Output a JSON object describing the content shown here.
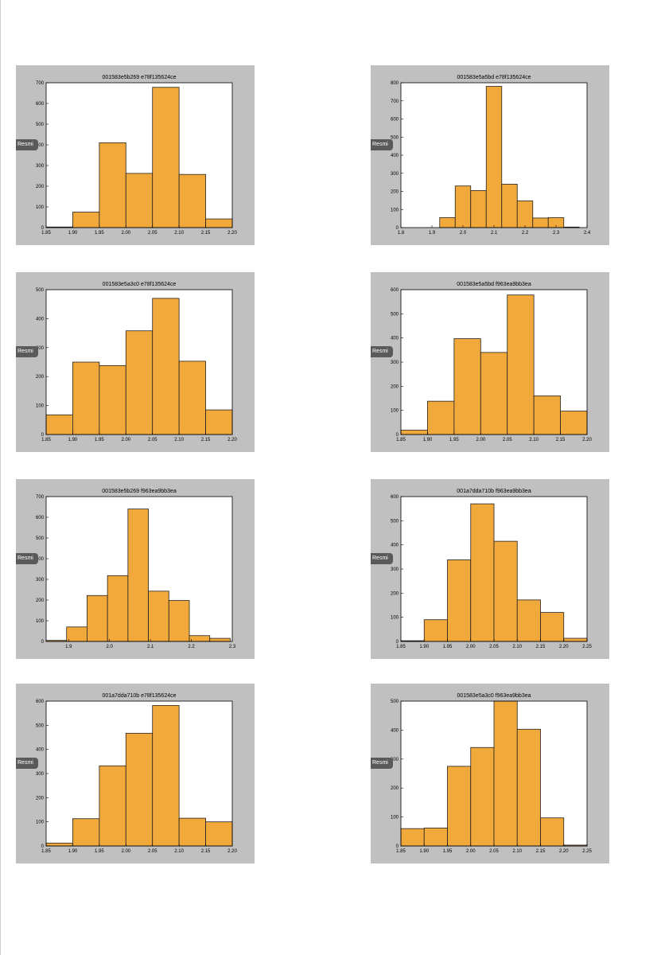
{
  "badge_label": "Resmi",
  "colors": {
    "bar_fill": "#f2a93b",
    "bar_stroke": "#222222",
    "panel_bg": "#c0c0c0",
    "plot_bg": "#ffffff"
  },
  "chart_data": [
    {
      "type": "bar",
      "title": "001583e5b269 e78f135624ce",
      "x_ticks": [
        "1.85",
        "1.90",
        "1.95",
        "2.00",
        "2.05",
        "2.10",
        "2.15",
        "2.20"
      ],
      "y_ticks": [
        "0",
        "100",
        "200",
        "300",
        "400",
        "500",
        "600",
        "700"
      ],
      "xlim": [
        1.85,
        2.2
      ],
      "ylim": [
        0,
        700
      ],
      "bins": [
        [
          1.85,
          1.9,
          3
        ],
        [
          1.9,
          1.95,
          75
        ],
        [
          1.95,
          2.0,
          410
        ],
        [
          2.0,
          2.05,
          262
        ],
        [
          2.05,
          2.1,
          678
        ],
        [
          2.1,
          2.15,
          257
        ],
        [
          2.15,
          2.2,
          42
        ]
      ]
    },
    {
      "type": "bar",
      "title": "001583e5a5bd e78f135624ce",
      "x_ticks": [
        "1.8",
        "1.9",
        "2.0",
        "2.1",
        "2.2",
        "2.3",
        "2.4"
      ],
      "y_ticks": [
        "0",
        "100",
        "200",
        "300",
        "400",
        "500",
        "600",
        "700",
        "800"
      ],
      "xlim": [
        1.8,
        2.4
      ],
      "ylim": [
        0,
        800
      ],
      "bins": [
        [
          1.925,
          1.975,
          55
        ],
        [
          1.975,
          2.025,
          230
        ],
        [
          2.025,
          2.075,
          205
        ],
        [
          2.075,
          2.125,
          780
        ],
        [
          2.125,
          2.175,
          240
        ],
        [
          2.175,
          2.225,
          148
        ],
        [
          2.225,
          2.275,
          53
        ],
        [
          2.275,
          2.325,
          55
        ],
        [
          2.325,
          2.375,
          3
        ]
      ]
    },
    {
      "type": "bar",
      "title": "001583e5a3c0 e78f135624ce",
      "x_ticks": [
        "1.85",
        "1.90",
        "1.95",
        "2.00",
        "2.05",
        "2.10",
        "2.15",
        "2.20"
      ],
      "y_ticks": [
        "0",
        "100",
        "200",
        "300",
        "400",
        "500"
      ],
      "xlim": [
        1.85,
        2.2
      ],
      "ylim": [
        0,
        500
      ],
      "bins": [
        [
          1.85,
          1.9,
          68
        ],
        [
          1.9,
          1.95,
          250
        ],
        [
          1.95,
          2.0,
          238
        ],
        [
          2.0,
          2.05,
          358
        ],
        [
          2.05,
          2.1,
          470
        ],
        [
          2.1,
          2.15,
          253
        ],
        [
          2.15,
          2.2,
          85
        ]
      ]
    },
    {
      "type": "bar",
      "title": "001583e5a5bd f963ea9bb3ea",
      "x_ticks": [
        "1.85",
        "1.90",
        "1.95",
        "2.00",
        "2.05",
        "2.10",
        "2.15",
        "2.20"
      ],
      "y_ticks": [
        "0",
        "100",
        "200",
        "300",
        "400",
        "500",
        "600"
      ],
      "xlim": [
        1.85,
        2.2
      ],
      "ylim": [
        0,
        600
      ],
      "bins": [
        [
          1.85,
          1.9,
          18
        ],
        [
          1.9,
          1.95,
          138
        ],
        [
          1.95,
          2.0,
          397
        ],
        [
          2.0,
          2.05,
          340
        ],
        [
          2.05,
          2.1,
          578
        ],
        [
          2.1,
          2.15,
          160
        ],
        [
          2.15,
          2.2,
          97
        ]
      ]
    },
    {
      "type": "bar",
      "title": "001583e5b269 f963ea9bb3ea",
      "x_ticks": [
        "1.9",
        "2.0",
        "2.1",
        "2.2",
        "2.3"
      ],
      "y_ticks": [
        "0",
        "100",
        "200",
        "300",
        "400",
        "500",
        "600",
        "700"
      ],
      "xlim": [
        1.845,
        2.3
      ],
      "ylim": [
        0,
        700
      ],
      "bins": [
        [
          1.845,
          1.895,
          5
        ],
        [
          1.895,
          1.945,
          70
        ],
        [
          1.945,
          1.995,
          222
        ],
        [
          1.995,
          2.045,
          318
        ],
        [
          2.045,
          2.095,
          640
        ],
        [
          2.095,
          2.145,
          243
        ],
        [
          2.145,
          2.195,
          198
        ],
        [
          2.195,
          2.245,
          28
        ],
        [
          2.245,
          2.295,
          15
        ]
      ]
    },
    {
      "type": "bar",
      "title": "001a7dda710b f963ea9bb3ea",
      "x_ticks": [
        "1.85",
        "1.90",
        "1.95",
        "2.00",
        "2.05",
        "2.10",
        "2.15",
        "2.20",
        "2.25"
      ],
      "y_ticks": [
        "0",
        "100",
        "200",
        "300",
        "400",
        "500",
        "600"
      ],
      "xlim": [
        1.85,
        2.25
      ],
      "ylim": [
        0,
        600
      ],
      "bins": [
        [
          1.85,
          1.9,
          3
        ],
        [
          1.9,
          1.95,
          90
        ],
        [
          1.95,
          2.0,
          338
        ],
        [
          2.0,
          2.05,
          570
        ],
        [
          2.05,
          2.1,
          415
        ],
        [
          2.1,
          2.15,
          172
        ],
        [
          2.15,
          2.2,
          120
        ],
        [
          2.2,
          2.25,
          13
        ]
      ]
    },
    {
      "type": "bar",
      "title": "001a7dda710b e78f135624ce",
      "x_ticks": [
        "1.85",
        "1.90",
        "1.95",
        "2.00",
        "2.05",
        "2.10",
        "2.15",
        "2.20"
      ],
      "y_ticks": [
        "0",
        "100",
        "200",
        "300",
        "400",
        "500",
        "600"
      ],
      "xlim": [
        1.85,
        2.2
      ],
      "ylim": [
        0,
        600
      ],
      "bins": [
        [
          1.85,
          1.9,
          12
        ],
        [
          1.9,
          1.95,
          113
        ],
        [
          1.95,
          2.0,
          332
        ],
        [
          2.0,
          2.05,
          467
        ],
        [
          2.05,
          2.1,
          582
        ],
        [
          2.1,
          2.15,
          115
        ],
        [
          2.15,
          2.2,
          100
        ]
      ]
    },
    {
      "type": "bar",
      "title": "001583e5a3c0 f963ea9bb3ea",
      "x_ticks": [
        "1.85",
        "1.90",
        "1.95",
        "2.00",
        "2.05",
        "2.10",
        "2.15",
        "2.20",
        "2.25"
      ],
      "y_ticks": [
        "0",
        "100",
        "200",
        "300",
        "400",
        "500"
      ],
      "xlim": [
        1.85,
        2.25
      ],
      "ylim": [
        0,
        500
      ],
      "bins": [
        [
          1.85,
          1.9,
          60
        ],
        [
          1.9,
          1.95,
          62
        ],
        [
          1.95,
          2.0,
          275
        ],
        [
          2.0,
          2.05,
          340
        ],
        [
          2.05,
          2.1,
          500
        ],
        [
          2.1,
          2.15,
          403
        ],
        [
          2.15,
          2.2,
          97
        ],
        [
          2.2,
          2.25,
          3
        ]
      ]
    }
  ]
}
